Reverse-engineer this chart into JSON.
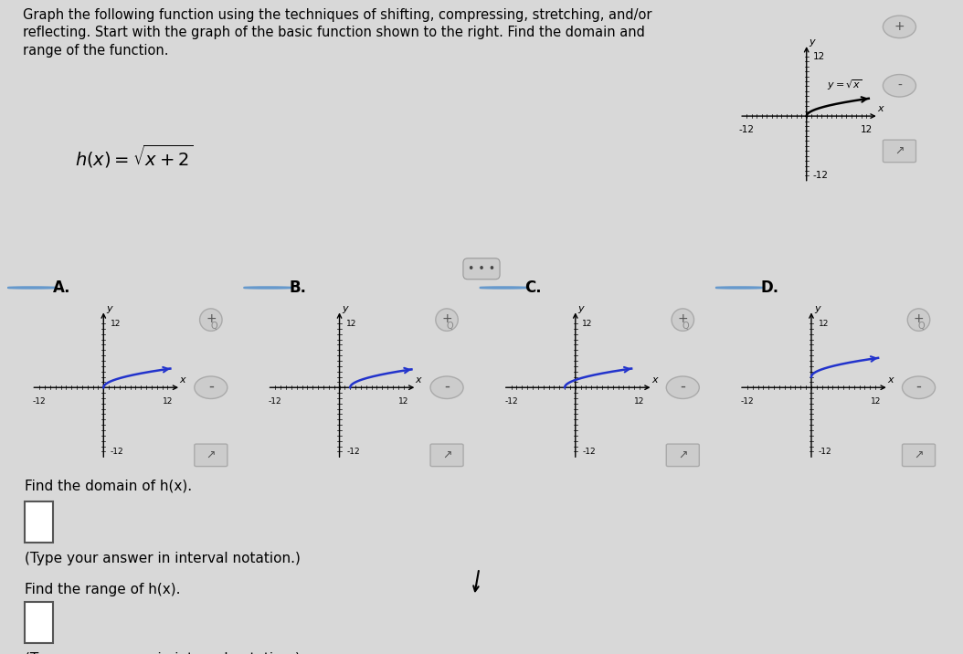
{
  "title_text": "Graph the following function using the techniques of shifting, compressing, stretching, and/or\nreflecting. Start with the graph of the basic function shown to the right. Find the domain and\nrange of the function.",
  "function_latex": "h(x) = \\sqrt{x+2}",
  "basic_function_label": "y = \\sqrt{x}",
  "options": [
    "A.",
    "B.",
    "C.",
    "D."
  ],
  "curve_color_basic": "#000000",
  "curve_color_options": "#2233cc",
  "bg_color": "#d8d8d8",
  "white_panel": "#ffffff",
  "light_panel": "#e8e8e8",
  "find_domain_text": "Find the domain of h(x).",
  "find_range_text": "Find the range of h(x).",
  "interval_notation_text": "(Type your answer in interval notation.)",
  "radio_color": "#6699cc",
  "highlight_color": "#e8d840",
  "graph_shifts_A": [
    0,
    0
  ],
  "graph_shifts_B": [
    2,
    0
  ],
  "graph_shifts_C": [
    -2,
    0
  ],
  "graph_shifts_D": [
    0,
    2
  ]
}
